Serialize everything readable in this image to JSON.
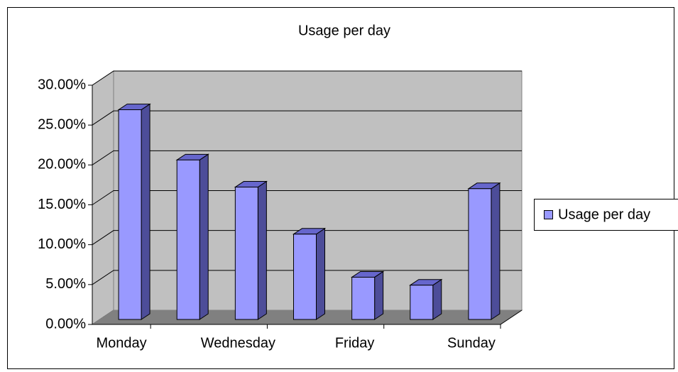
{
  "chart_data": {
    "type": "bar3d",
    "title": "Usage per day",
    "categories": [
      "Monday",
      null,
      "Wednesday",
      null,
      "Friday",
      null,
      "Sunday"
    ],
    "series": [
      {
        "name": "Usage per day",
        "color": "#9999ff",
        "values": [
          26.3,
          20.0,
          16.6,
          10.7,
          5.3,
          4.3,
          16.4
        ]
      }
    ],
    "ylim": [
      0,
      30
    ],
    "yticks": [
      {
        "value": 0,
        "label": "0.00%"
      },
      {
        "value": 5,
        "label": "5.00%"
      },
      {
        "value": 10,
        "label": "10.00%"
      },
      {
        "value": 15,
        "label": "15.00%"
      },
      {
        "value": 20,
        "label": "20.00%"
      },
      {
        "value": 25,
        "label": "25.00%"
      },
      {
        "value": 30,
        "label": "30.00%"
      }
    ],
    "grid": true,
    "legend": "right"
  }
}
